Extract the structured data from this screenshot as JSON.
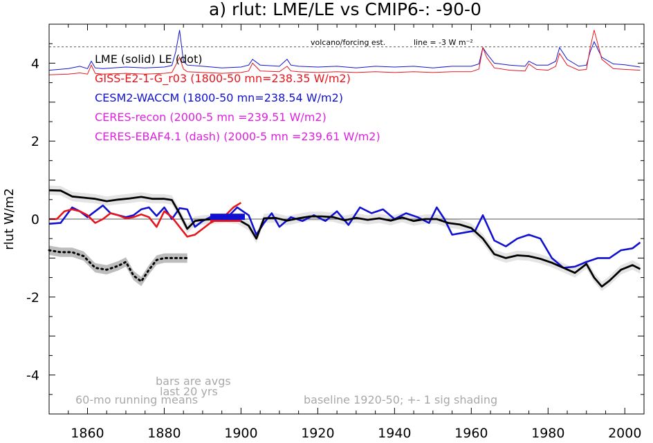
{
  "chart_data": {
    "type": "line",
    "title": "a) rlut: LME/LE vs CMIP6-: -90-0",
    "ylabel": "rlut W/m2",
    "xlabel": "",
    "xlim": [
      1850,
      2005
    ],
    "ylim": [
      -5,
      5
    ],
    "xticks": [
      1860,
      1880,
      1900,
      1920,
      1940,
      1960,
      1980,
      2000
    ],
    "yticks": [
      -4,
      -2,
      0,
      2,
      4
    ],
    "reference_line": {
      "y": 0,
      "color": "#555555"
    },
    "volcano_line": {
      "y": 4.42,
      "label": "volcano/forcing est.",
      "scale_label": "line = -3 W m⁻²"
    },
    "legend": [
      {
        "text": "LME (solid)   LE (dot)",
        "color": "#000000"
      },
      {
        "text": "GISS-E2-1-G_r03 (1800-50 mn=238.35 W/m2)",
        "color": "#e8141c"
      },
      {
        "text": "CESM2-WACCM (1800-50 mn=238.54 W/m2)",
        "color": "#1010d0"
      },
      {
        "text": "CERES-recon (2000-5 mn =239.51 W/m2)",
        "color": "#e020e0"
      },
      {
        "text": "CERES-EBAF4.1 (dash) (2000-5 mn =239.61 W/m2)",
        "color": "#e020e0"
      }
    ],
    "annotations": {
      "bars_note": [
        "bars are avgs",
        "last 20 yrs"
      ],
      "running_mean": "60-mo running means",
      "baseline": "baseline 1920-50; +- 1 sig shading"
    },
    "series": [
      {
        "name": "LME (solid)",
        "color": "#000000",
        "style": "solid",
        "x": [
          1850,
          1853,
          1856,
          1859,
          1862,
          1865,
          1868,
          1871,
          1874,
          1877,
          1880,
          1882,
          1884,
          1886,
          1888,
          1890,
          1893,
          1896,
          1899,
          1902,
          1904,
          1906,
          1909,
          1912,
          1915,
          1918,
          1921,
          1924,
          1927,
          1930,
          1933,
          1936,
          1939,
          1942,
          1945,
          1948,
          1951,
          1954,
          1957,
          1960,
          1963,
          1966,
          1969,
          1972,
          1975,
          1978,
          1981,
          1984,
          1987,
          1990,
          1992,
          1994,
          1996,
          1999,
          2002,
          2004
        ],
        "y": [
          0.74,
          0.73,
          0.58,
          0.55,
          0.52,
          0.46,
          0.5,
          0.53,
          0.57,
          0.52,
          0.52,
          0.49,
          0.14,
          -0.25,
          -0.05,
          -0.02,
          0.0,
          0.02,
          0.0,
          -0.17,
          -0.5,
          0.02,
          0.03,
          -0.04,
          0.02,
          0.07,
          0.07,
          0.05,
          -0.03,
          0.03,
          -0.02,
          0.02,
          -0.04,
          0.04,
          -0.05,
          0.0,
          0.0,
          -0.1,
          -0.14,
          -0.23,
          -0.5,
          -0.9,
          -1.0,
          -0.93,
          -0.95,
          -1.02,
          -1.12,
          -1.25,
          -1.38,
          -1.15,
          -1.5,
          -1.73,
          -1.58,
          -1.3,
          -1.18,
          -1.28
        ],
        "shade": 0.12
      },
      {
        "name": "LE (dot)",
        "color": "#000000",
        "style": "dot",
        "segments": [
          {
            "x": [
              1850,
              1853,
              1856,
              1859,
              1862,
              1865,
              1868,
              1870,
              1872,
              1874,
              1876,
              1878,
              1880,
              1882,
              1884,
              1886
            ],
            "y": [
              -0.8,
              -0.85,
              -0.85,
              -0.95,
              -1.25,
              -1.3,
              -1.2,
              -1.1,
              -1.45,
              -1.6,
              -1.3,
              -1.05,
              -1.0,
              -1.0,
              -1.0,
              -1.0
            ]
          }
        ],
        "shade": 0.12
      },
      {
        "name": "GISS-E2-1-G_r03",
        "color": "#e8141c",
        "style": "solid",
        "x": [
          1850,
          1852,
          1854,
          1856,
          1858,
          1860,
          1862,
          1864,
          1866,
          1868,
          1870,
          1872,
          1874,
          1876,
          1878,
          1880,
          1882,
          1884,
          1886,
          1888,
          1890,
          1892,
          1894,
          1896,
          1898,
          1900
        ],
        "y": [
          0.0,
          0.0,
          0.2,
          0.25,
          0.2,
          0.1,
          -0.1,
          0.0,
          0.15,
          0.1,
          0.02,
          0.05,
          0.12,
          0.05,
          -0.2,
          0.2,
          0.05,
          -0.2,
          -0.45,
          -0.4,
          -0.25,
          -0.1,
          0.0,
          0.1,
          0.3,
          0.42
        ]
      },
      {
        "name": "CESM2-WACCM",
        "color": "#1010d0",
        "style": "solid",
        "x": [
          1850,
          1853,
          1856,
          1858,
          1860,
          1862,
          1864,
          1866,
          1868,
          1870,
          1872,
          1874,
          1876,
          1878,
          1880,
          1882,
          1884,
          1886,
          1888,
          1890,
          1893,
          1896,
          1899,
          1902,
          1904,
          1906,
          1908,
          1910,
          1913,
          1916,
          1919,
          1922,
          1925,
          1928,
          1931,
          1934,
          1937,
          1940,
          1943,
          1946,
          1949,
          1951,
          1953,
          1955,
          1958,
          1961,
          1963,
          1966,
          1969,
          1972,
          1975,
          1978,
          1981,
          1984,
          1987,
          1990,
          1993,
          1996,
          1999,
          2002,
          2004
        ],
        "y": [
          -0.12,
          -0.1,
          0.3,
          0.2,
          0.05,
          0.2,
          0.35,
          0.15,
          0.1,
          0.05,
          0.1,
          0.25,
          0.3,
          0.08,
          0.3,
          0.0,
          0.28,
          0.25,
          -0.2,
          -0.05,
          0.1,
          0.0,
          0.3,
          0.1,
          -0.4,
          -0.1,
          0.15,
          -0.2,
          0.05,
          -0.05,
          0.1,
          -0.05,
          0.2,
          -0.15,
          0.3,
          0.15,
          0.25,
          0.0,
          0.15,
          0.05,
          -0.1,
          0.3,
          0.0,
          -0.4,
          -0.35,
          -0.3,
          0.1,
          -0.55,
          -0.7,
          -0.5,
          -0.4,
          -0.5,
          -1.0,
          -1.25,
          -1.22,
          -1.1,
          -1.0,
          -1.0,
          -0.8,
          -0.75,
          -0.6
        ]
      }
    ],
    "bars": [
      {
        "series": "GISS-E2-1-G_r03",
        "x": [
          1892,
          1900
        ],
        "y": 0.0,
        "color": "#e8141c"
      },
      {
        "series": "CESM2-WACCM",
        "x": [
          1892,
          1901
        ],
        "y": 0.05,
        "color": "#1010d0"
      }
    ],
    "forcing_series": [
      {
        "name": "CESM2-WACCM forcing",
        "color": "#1010d0",
        "x": [
          1850,
          1855,
          1858,
          1860,
          1861,
          1862,
          1864,
          1870,
          1875,
          1880,
          1882,
          1883,
          1884,
          1885,
          1886,
          1890,
          1895,
          1900,
          1902,
          1903,
          1905,
          1910,
          1912,
          1913,
          1915,
          1920,
          1925,
          1930,
          1935,
          1940,
          1945,
          1950,
          1955,
          1960,
          1962,
          1963,
          1964,
          1966,
          1970,
          1974,
          1975,
          1977,
          1980,
          1982,
          1983,
          1985,
          1988,
          1990,
          1991,
          1992,
          1994,
          1997,
          2000,
          2004
        ],
        "y": [
          3.82,
          3.86,
          3.92,
          3.86,
          4.05,
          3.88,
          3.86,
          3.9,
          3.88,
          3.9,
          3.94,
          4.3,
          4.85,
          4.05,
          3.95,
          3.92,
          3.88,
          3.9,
          3.95,
          4.1,
          3.95,
          3.92,
          4.1,
          3.95,
          3.92,
          3.9,
          3.92,
          3.88,
          3.92,
          3.9,
          3.92,
          3.88,
          3.92,
          3.92,
          3.98,
          4.4,
          4.25,
          4.0,
          3.95,
          3.92,
          4.05,
          3.95,
          3.95,
          4.05,
          4.4,
          4.1,
          3.92,
          3.95,
          4.3,
          4.55,
          4.15,
          3.98,
          3.96,
          3.9
        ]
      },
      {
        "name": "GISS-E2-1-G_r03 forcing",
        "color": "#e8141c",
        "x": [
          1850,
          1855,
          1858,
          1860,
          1861,
          1862,
          1864,
          1870,
          1875,
          1880,
          1882,
          1883,
          1884,
          1885,
          1886,
          1890,
          1895,
          1900,
          1902,
          1903,
          1905,
          1910,
          1912,
          1913,
          1915,
          1920,
          1925,
          1930,
          1935,
          1940,
          1945,
          1950,
          1955,
          1960,
          1962,
          1963,
          1964,
          1966,
          1970,
          1974,
          1975,
          1977,
          1980,
          1982,
          1983,
          1985,
          1988,
          1990,
          1991,
          1992,
          1994,
          1997,
          2000,
          2004
        ],
        "y": [
          3.7,
          3.72,
          3.75,
          3.72,
          3.95,
          3.74,
          3.72,
          3.74,
          3.72,
          3.74,
          3.76,
          3.95,
          4.15,
          3.85,
          3.78,
          3.76,
          3.74,
          3.76,
          3.8,
          4.0,
          3.8,
          3.78,
          3.92,
          3.8,
          3.78,
          3.76,
          3.78,
          3.76,
          3.78,
          3.76,
          3.78,
          3.76,
          3.78,
          3.78,
          3.85,
          4.4,
          4.15,
          3.88,
          3.82,
          3.8,
          3.98,
          3.84,
          3.82,
          3.92,
          4.25,
          3.95,
          3.82,
          3.84,
          4.4,
          4.85,
          4.1,
          3.86,
          3.84,
          3.82
        ]
      }
    ]
  }
}
